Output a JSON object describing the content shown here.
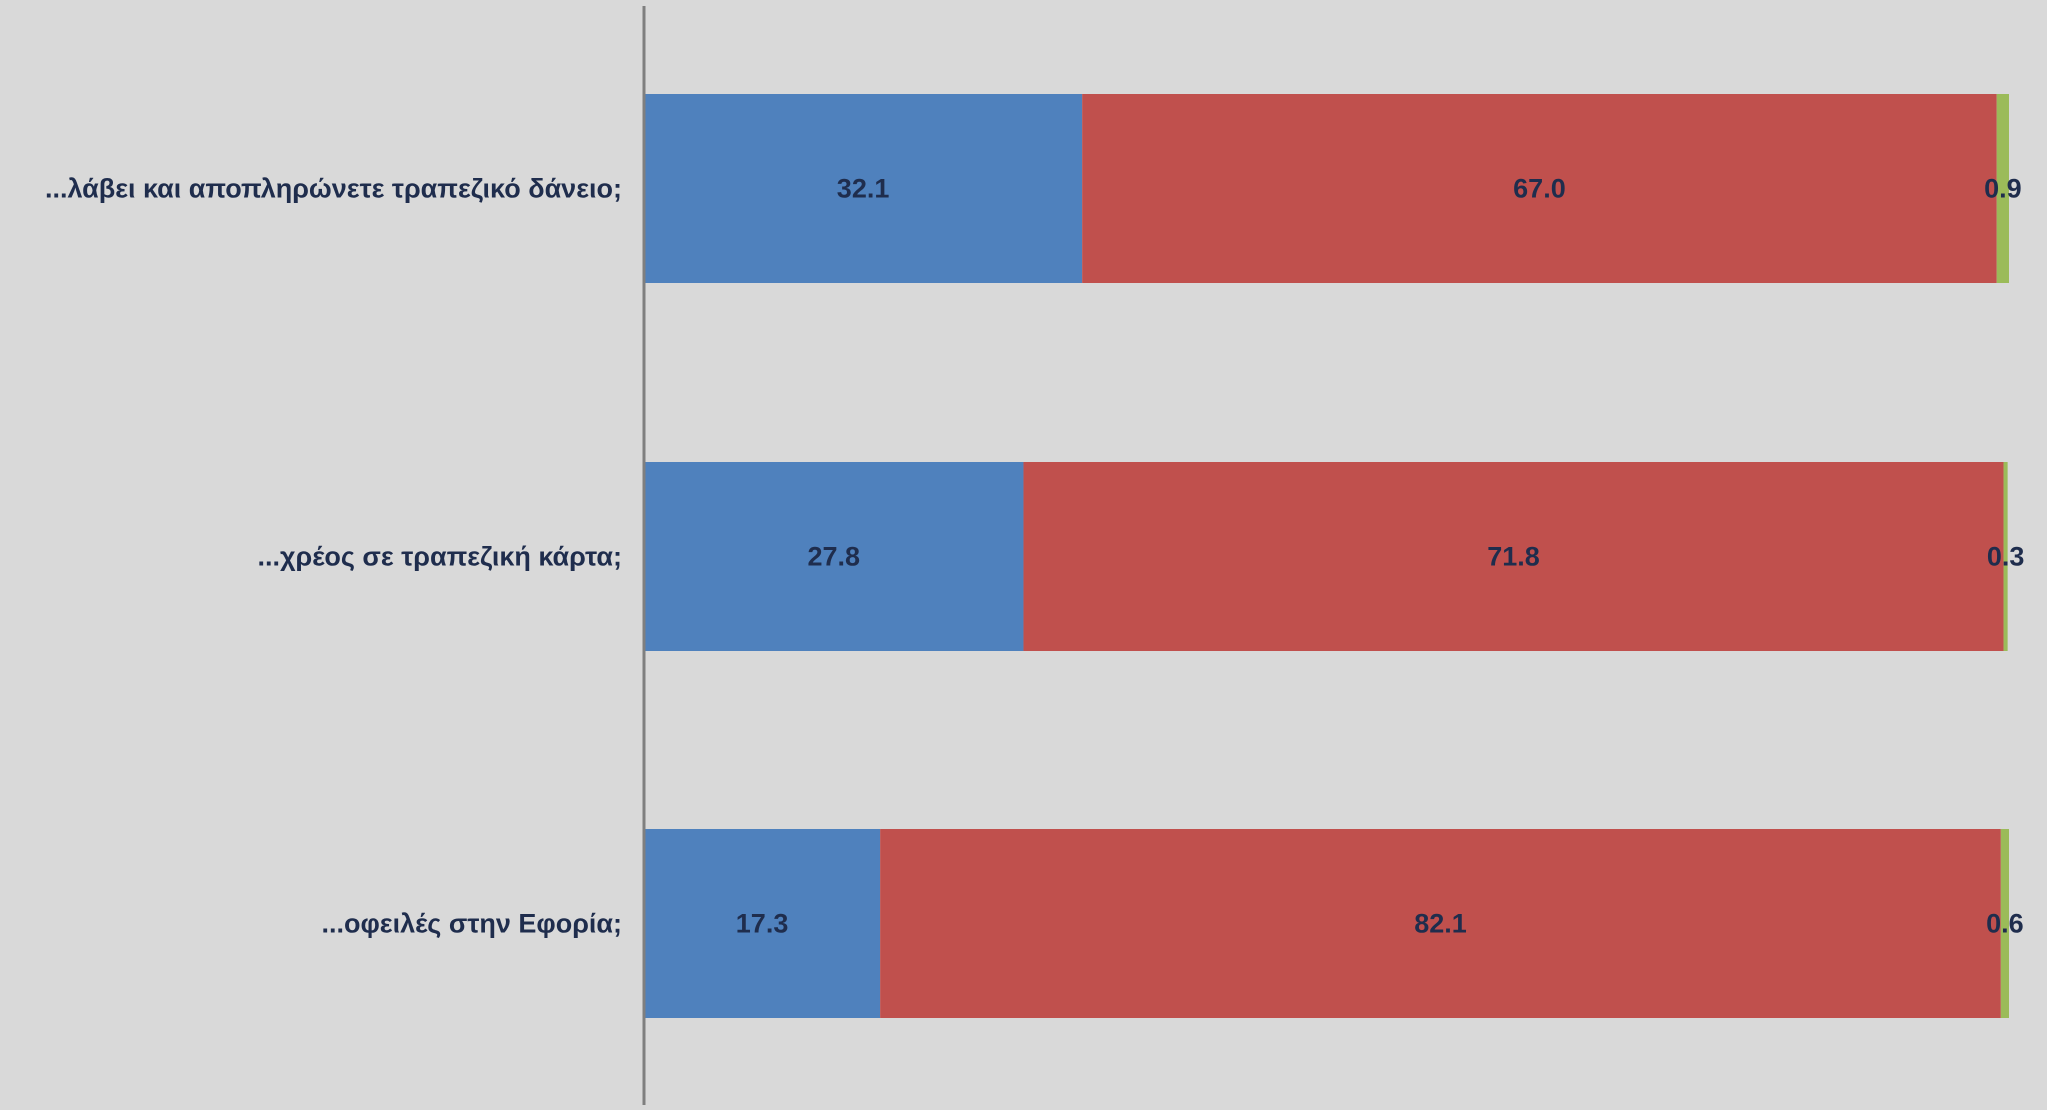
{
  "chart_data": {
    "type": "bar",
    "orientation": "horizontal",
    "stacked": true,
    "categories": [
      "...λάβει και αποπληρώνετε τραπεζικό δάνειο;",
      "...χρέος σε τραπεζική κάρτα;",
      "...οφειλές στην Εφορία;"
    ],
    "series": [
      {
        "values": [
          32.1,
          27.8,
          17.3
        ],
        "color": "#4f81bd"
      },
      {
        "values": [
          67.0,
          71.8,
          82.1
        ],
        "color": "#c0504d"
      },
      {
        "values": [
          0.9,
          0.3,
          0.6
        ],
        "color": "#9bbb59"
      }
    ],
    "data_labels": [
      [
        "32.1",
        "67.0",
        "0.9"
      ],
      [
        "27.8",
        "71.8",
        "0.3"
      ],
      [
        "17.3",
        "82.1",
        "0.6"
      ]
    ],
    "xlim": [
      0,
      100
    ],
    "grid": false,
    "legend": "none",
    "colors": {
      "background": "#d9d9d9",
      "axis": "#7f7f7f",
      "label_text": "#1f2d4d"
    }
  }
}
